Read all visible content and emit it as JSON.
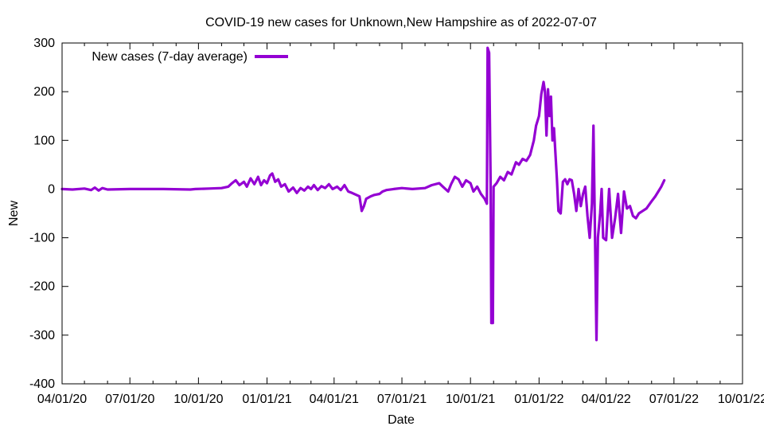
{
  "chart_data": {
    "type": "line",
    "title": "COVID-19 new cases for Unknown,New Hampshire as of 2022-07-07",
    "xlabel": "Date",
    "ylabel": "New",
    "xlim": [
      "2020-04-01",
      "2022-10-01"
    ],
    "ylim": [
      -400,
      300
    ],
    "x_ticks": [
      "04/01/20",
      "07/01/20",
      "10/01/20",
      "01/01/21",
      "04/01/21",
      "07/01/21",
      "10/01/21",
      "01/01/22",
      "04/01/22",
      "07/01/22",
      "10/01/22"
    ],
    "y_ticks": [
      "300",
      "200",
      "100",
      "0",
      "-100",
      "-200",
      "-300",
      "-400"
    ],
    "grid": false,
    "legend_position": "top-left",
    "series": [
      {
        "name": "New cases (7-day average)",
        "color": "#9400d3",
        "points": [
          [
            "2020-04-01",
            0
          ],
          [
            "2020-04-15",
            -1
          ],
          [
            "2020-05-01",
            1
          ],
          [
            "2020-05-10",
            -2
          ],
          [
            "2020-05-15",
            3
          ],
          [
            "2020-05-20",
            -3
          ],
          [
            "2020-05-25",
            2
          ],
          [
            "2020-06-01",
            -1
          ],
          [
            "2020-07-01",
            0
          ],
          [
            "2020-08-15",
            0
          ],
          [
            "2020-09-20",
            -1
          ],
          [
            "2020-09-27",
            0
          ],
          [
            "2020-10-15",
            1
          ],
          [
            "2020-11-01",
            2
          ],
          [
            "2020-11-10",
            5
          ],
          [
            "2020-11-15",
            12
          ],
          [
            "2020-11-20",
            18
          ],
          [
            "2020-11-25",
            8
          ],
          [
            "2020-12-01",
            15
          ],
          [
            "2020-12-05",
            5
          ],
          [
            "2020-12-10",
            22
          ],
          [
            "2020-12-15",
            10
          ],
          [
            "2020-12-20",
            25
          ],
          [
            "2020-12-24",
            8
          ],
          [
            "2020-12-28",
            18
          ],
          [
            "2021-01-01",
            12
          ],
          [
            "2021-01-05",
            28
          ],
          [
            "2021-01-08",
            32
          ],
          [
            "2021-01-12",
            15
          ],
          [
            "2021-01-16",
            20
          ],
          [
            "2021-01-20",
            5
          ],
          [
            "2021-01-25",
            10
          ],
          [
            "2021-01-30",
            -5
          ],
          [
            "2021-02-05",
            3
          ],
          [
            "2021-02-10",
            -8
          ],
          [
            "2021-02-15",
            2
          ],
          [
            "2021-02-20",
            -3
          ],
          [
            "2021-02-25",
            5
          ],
          [
            "2021-03-01",
            0
          ],
          [
            "2021-03-05",
            8
          ],
          [
            "2021-03-10",
            -2
          ],
          [
            "2021-03-15",
            6
          ],
          [
            "2021-03-20",
            2
          ],
          [
            "2021-03-25",
            10
          ],
          [
            "2021-03-30",
            0
          ],
          [
            "2021-04-05",
            5
          ],
          [
            "2021-04-10",
            -2
          ],
          [
            "2021-04-15",
            8
          ],
          [
            "2021-04-20",
            -5
          ],
          [
            "2021-04-25",
            -8
          ],
          [
            "2021-05-01",
            -12
          ],
          [
            "2021-05-05",
            -15
          ],
          [
            "2021-05-08",
            -45
          ],
          [
            "2021-05-11",
            -35
          ],
          [
            "2021-05-14",
            -20
          ],
          [
            "2021-05-20",
            -15
          ],
          [
            "2021-05-25",
            -12
          ],
          [
            "2021-06-01",
            -10
          ],
          [
            "2021-06-05",
            -5
          ],
          [
            "2021-06-10",
            -2
          ],
          [
            "2021-06-20",
            0
          ],
          [
            "2021-07-01",
            2
          ],
          [
            "2021-07-15",
            0
          ],
          [
            "2021-08-01",
            2
          ],
          [
            "2021-08-10",
            8
          ],
          [
            "2021-08-20",
            12
          ],
          [
            "2021-08-25",
            5
          ],
          [
            "2021-09-01",
            -5
          ],
          [
            "2021-09-05",
            10
          ],
          [
            "2021-09-10",
            25
          ],
          [
            "2021-09-15",
            20
          ],
          [
            "2021-09-20",
            5
          ],
          [
            "2021-09-25",
            18
          ],
          [
            "2021-10-01",
            12
          ],
          [
            "2021-10-05",
            -5
          ],
          [
            "2021-10-10",
            5
          ],
          [
            "2021-10-15",
            -10
          ],
          [
            "2021-10-20",
            -20
          ],
          [
            "2021-10-23",
            -30
          ],
          [
            "2021-10-24",
            290
          ],
          [
            "2021-10-26",
            280
          ],
          [
            "2021-10-28",
            10
          ],
          [
            "2021-10-29",
            -275
          ],
          [
            "2021-10-31",
            -275
          ],
          [
            "2021-11-01",
            5
          ],
          [
            "2021-11-05",
            12
          ],
          [
            "2021-11-10",
            25
          ],
          [
            "2021-11-15",
            18
          ],
          [
            "2021-11-20",
            35
          ],
          [
            "2021-11-25",
            30
          ],
          [
            "2021-12-01",
            55
          ],
          [
            "2021-12-05",
            50
          ],
          [
            "2021-12-10",
            62
          ],
          [
            "2021-12-15",
            58
          ],
          [
            "2021-12-20",
            70
          ],
          [
            "2021-12-25",
            100
          ],
          [
            "2021-12-28",
            130
          ],
          [
            "2022-01-01",
            150
          ],
          [
            "2022-01-04",
            195
          ],
          [
            "2022-01-07",
            220
          ],
          [
            "2022-01-09",
            200
          ],
          [
            "2022-01-11",
            110
          ],
          [
            "2022-01-13",
            205
          ],
          [
            "2022-01-15",
            150
          ],
          [
            "2022-01-17",
            190
          ],
          [
            "2022-01-19",
            100
          ],
          [
            "2022-01-21",
            125
          ],
          [
            "2022-01-25",
            20
          ],
          [
            "2022-01-27",
            -45
          ],
          [
            "2022-01-30",
            -50
          ],
          [
            "2022-02-02",
            15
          ],
          [
            "2022-02-05",
            20
          ],
          [
            "2022-02-08",
            10
          ],
          [
            "2022-02-11",
            20
          ],
          [
            "2022-02-14",
            18
          ],
          [
            "2022-02-17",
            -10
          ],
          [
            "2022-02-20",
            -45
          ],
          [
            "2022-02-23",
            0
          ],
          [
            "2022-02-26",
            -35
          ],
          [
            "2022-03-01",
            -10
          ],
          [
            "2022-03-04",
            5
          ],
          [
            "2022-03-07",
            -55
          ],
          [
            "2022-03-10",
            -100
          ],
          [
            "2022-03-13",
            -30
          ],
          [
            "2022-03-15",
            130
          ],
          [
            "2022-03-17",
            -90
          ],
          [
            "2022-03-19",
            -310
          ],
          [
            "2022-03-21",
            -100
          ],
          [
            "2022-03-24",
            -50
          ],
          [
            "2022-03-26",
            0
          ],
          [
            "2022-03-28",
            -100
          ],
          [
            "2022-04-01",
            -105
          ],
          [
            "2022-04-05",
            0
          ],
          [
            "2022-04-09",
            -100
          ],
          [
            "2022-04-13",
            -60
          ],
          [
            "2022-04-17",
            -10
          ],
          [
            "2022-04-21",
            -90
          ],
          [
            "2022-04-25",
            -5
          ],
          [
            "2022-04-29",
            -40
          ],
          [
            "2022-05-03",
            -35
          ],
          [
            "2022-05-07",
            -55
          ],
          [
            "2022-05-11",
            -60
          ],
          [
            "2022-05-15",
            -50
          ],
          [
            "2022-05-20",
            -45
          ],
          [
            "2022-05-25",
            -40
          ],
          [
            "2022-06-01",
            -25
          ],
          [
            "2022-06-06",
            -15
          ],
          [
            "2022-06-10",
            -5
          ],
          [
            "2022-06-14",
            5
          ],
          [
            "2022-06-18",
            18
          ]
        ]
      }
    ]
  }
}
